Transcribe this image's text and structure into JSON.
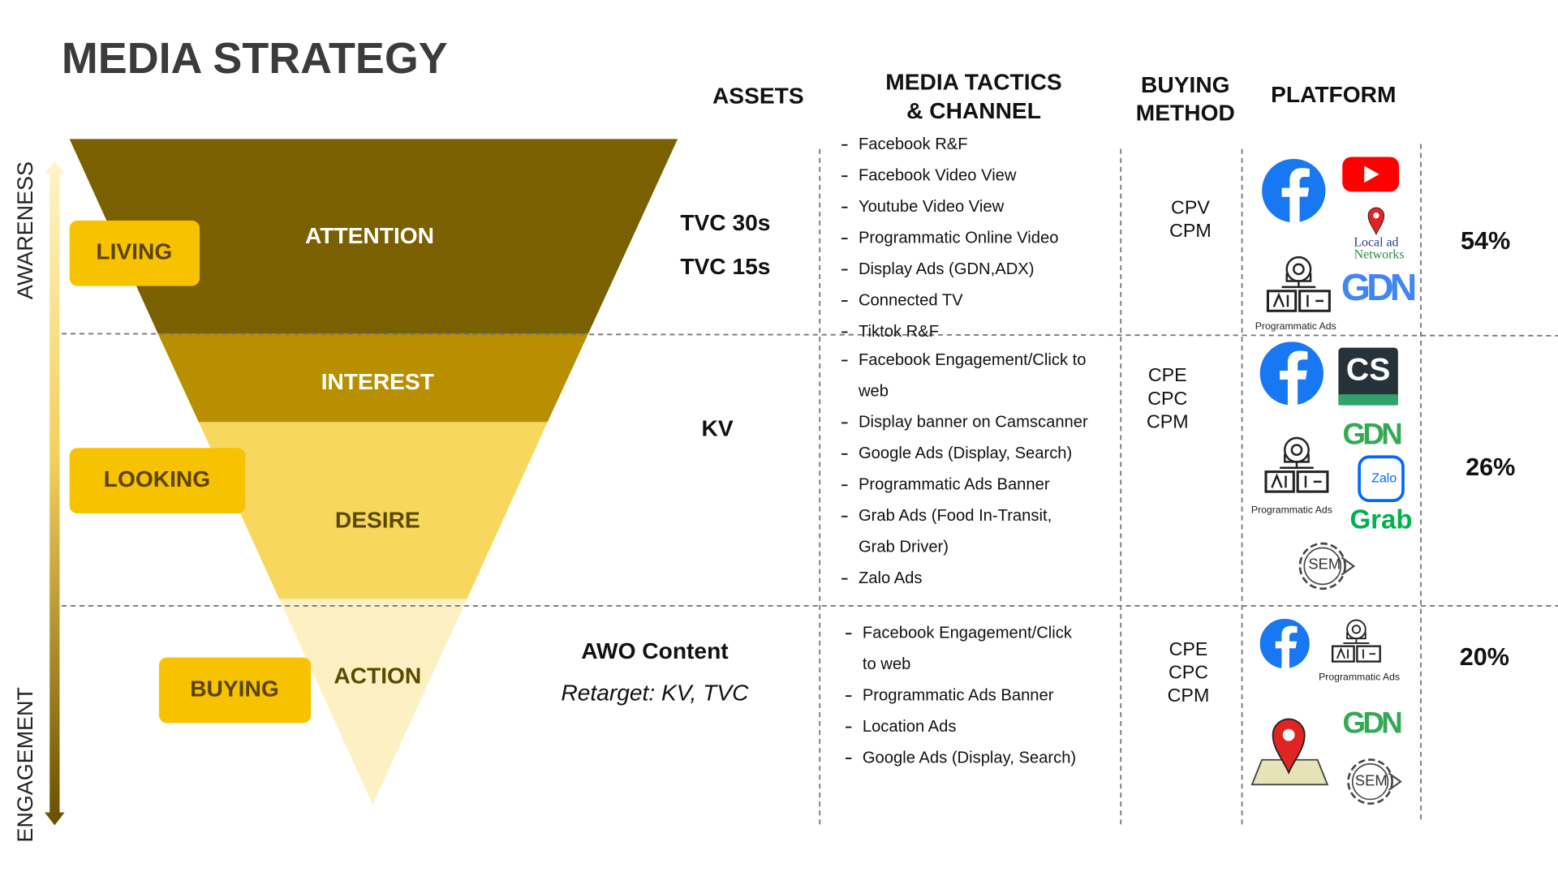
{
  "title": "MEDIA STRATEGY",
  "headers": {
    "assets": "ASSETS",
    "tactics": [
      "MEDIA TACTICS",
      "& CHANNEL"
    ],
    "buying": [
      "BUYING",
      "METHOD"
    ],
    "platform": "PLATFORM"
  },
  "axis": {
    "top": "AWARENESS",
    "bottom": "ENGAGEMENT"
  },
  "funnel": [
    "ATTENTION",
    "INTEREST",
    "DESIRE",
    "ACTION"
  ],
  "mindsets": [
    "LIVING",
    "LOOKING",
    "BUYING"
  ],
  "rows": [
    {
      "assets": [
        "TVC 30s",
        "TVC 15s"
      ],
      "tactics": [
        [
          "Facebook R&F"
        ],
        [
          "Facebook Video View"
        ],
        [
          "Youtube Video View"
        ],
        [
          "Programmatic Online Video"
        ],
        [
          "Display Ads (GDN,ADX)"
        ],
        [
          "Connected TV"
        ],
        [
          "Tiktok R&F"
        ]
      ],
      "buying": [
        "CPV",
        "CPM"
      ],
      "platforms": [
        "Local ad",
        "Networks",
        "Programmatic Ads",
        "GDN"
      ],
      "share": "54%"
    },
    {
      "assets": [
        "KV"
      ],
      "tactics": [
        [
          "Facebook Engagement/Click to",
          "web"
        ],
        [
          "Display banner on Camscanner"
        ],
        [
          "Google Ads (Display, Search)"
        ],
        [
          "Programmatic Ads Banner"
        ],
        [
          "Grab Ads (Food In-Transit,",
          "Grab Driver)"
        ],
        [
          "Zalo Ads"
        ]
      ],
      "buying": [
        "CPE",
        "CPC",
        "CPM"
      ],
      "platforms": [
        "CS",
        "GDN",
        "Programmatic Ads",
        "Zalo",
        "Grab",
        "SEM"
      ],
      "share": "26%"
    },
    {
      "assets": [
        "AWO Content",
        "Retarget: KV, TVC"
      ],
      "tactics": [
        [
          "Facebook Engagement/Click",
          "to web"
        ],
        [
          "Programmatic Ads Banner"
        ],
        [
          "Location Ads"
        ],
        [
          "Google Ads (Display, Search)"
        ]
      ],
      "buying": [
        "CPE",
        "CPC",
        "CPM"
      ],
      "platforms": [
        "Programmatic Ads",
        "GDN",
        "SEM"
      ],
      "share": "20%"
    }
  ]
}
